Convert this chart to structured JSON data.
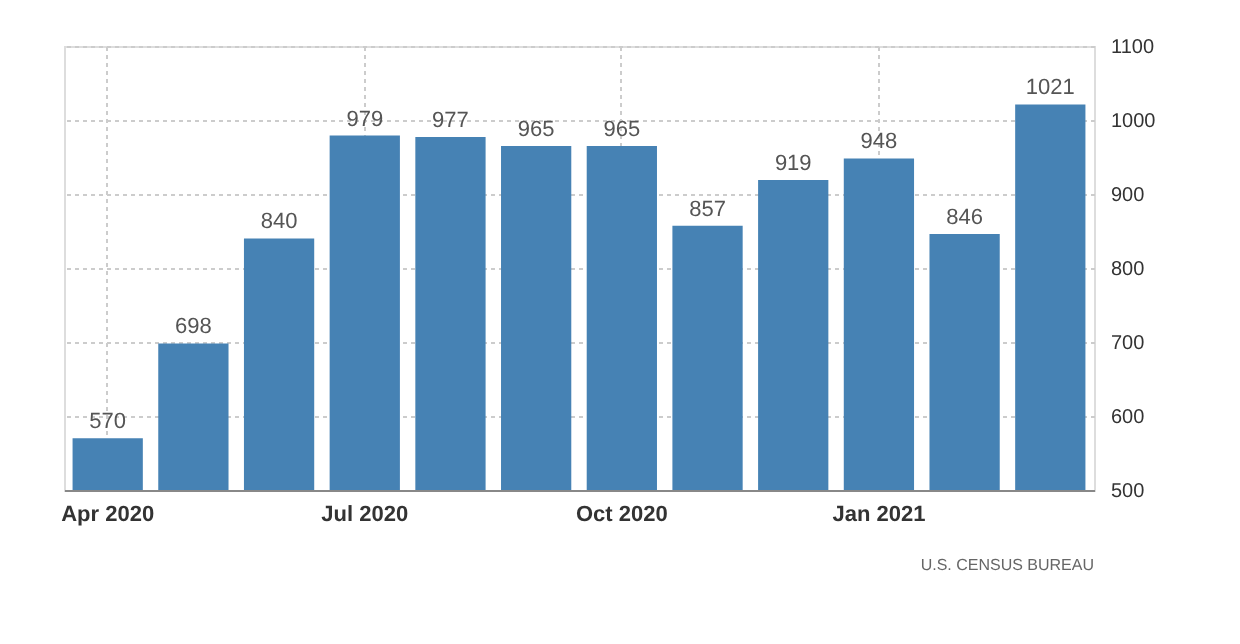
{
  "chart_data": {
    "type": "bar",
    "categories": [
      "Apr 2020",
      null,
      null,
      "Jul 2020",
      null,
      null,
      "Oct 2020",
      null,
      null,
      "Jan 2021",
      null,
      null
    ],
    "values": [
      570,
      698,
      840,
      979,
      977,
      965,
      965,
      857,
      919,
      948,
      846,
      1021
    ],
    "color": "#4682b4",
    "ylim": [
      500,
      1100
    ],
    "yticks": [
      500,
      600,
      700,
      800,
      900,
      1000,
      1100
    ],
    "grid": true,
    "data_labels": true,
    "annotations": [
      "U.S. CENSUS BUREAU"
    ]
  }
}
